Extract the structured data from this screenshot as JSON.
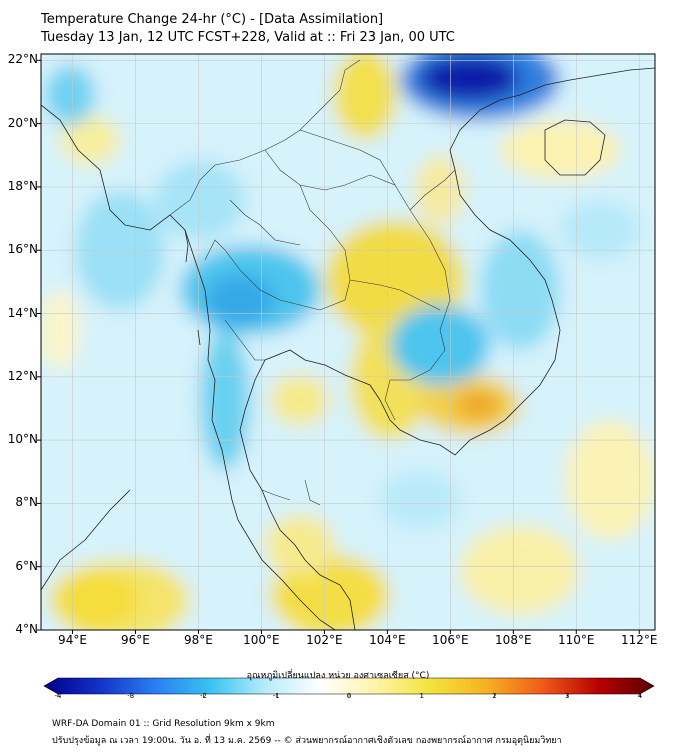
{
  "title_line1": "Temperature Change 24-hr (°C) - [Data Assimilation]",
  "title_line2": "Tuesday 13 Jan, 12 UTC FCST+228, Valid at :: Fri 23 Jan, 00 UTC",
  "lat_ticks": [
    {
      "value": 22,
      "label": "22°N"
    },
    {
      "value": 20,
      "label": "20°N"
    },
    {
      "value": 18,
      "label": "18°N"
    },
    {
      "value": 16,
      "label": "16°N"
    },
    {
      "value": 14,
      "label": "14°N"
    },
    {
      "value": 12,
      "label": "12°N"
    },
    {
      "value": 10,
      "label": "10°N"
    },
    {
      "value": 8,
      "label": "8°N"
    },
    {
      "value": 6,
      "label": "6°N"
    },
    {
      "value": 4,
      "label": "4°N"
    }
  ],
  "lon_ticks": [
    {
      "value": 94,
      "label": "94°E"
    },
    {
      "value": 96,
      "label": "96°E"
    },
    {
      "value": 98,
      "label": "98°E"
    },
    {
      "value": 100,
      "label": "100°E"
    },
    {
      "value": 102,
      "label": "102°E"
    },
    {
      "value": 104,
      "label": "104°E"
    },
    {
      "value": 106,
      "label": "106°E"
    },
    {
      "value": 108,
      "label": "108°E"
    },
    {
      "value": 110,
      "label": "110°E"
    },
    {
      "value": 112,
      "label": "112°E"
    }
  ],
  "extent": {
    "lon_min": 93,
    "lon_max": 112.5,
    "lat_min": 4,
    "lat_max": 22.2
  },
  "colorbar": {
    "title": "อุณหภูมิเปลี่ยนแปลง หน่วย องศาเซลเซียส (°C)",
    "min": -4,
    "max": 4,
    "tick_labels": [
      "-4",
      "-3",
      "-2",
      "-1",
      "0",
      "1",
      "2",
      "3",
      "4"
    ],
    "colors": [
      "#00008b",
      "#1232c8",
      "#2a7ef2",
      "#35c4f0",
      "#b8ecfb",
      "#ffffff",
      "#fff3a6",
      "#f3e23a",
      "#f6b021",
      "#ef5a1a",
      "#b80000",
      "#5a0000"
    ]
  },
  "footer_line1": "WRF-DA Domain 01 :: Grid Resolution 9km x 9km",
  "footer_line2": "ปรับปรุงข้อมูล ณ เวลา 19:00น. วัน อ. ที่ 13 ม.ค. 2569 -- © ส่วนพยากรณ์อากาศเชิงตัวเลข กองพยากรณ์อากาศ กรมอุตุนิยมวิทยา",
  "colors": {
    "background": "#ffffff",
    "grid": "#c8c8c8",
    "coast": "#222222"
  }
}
